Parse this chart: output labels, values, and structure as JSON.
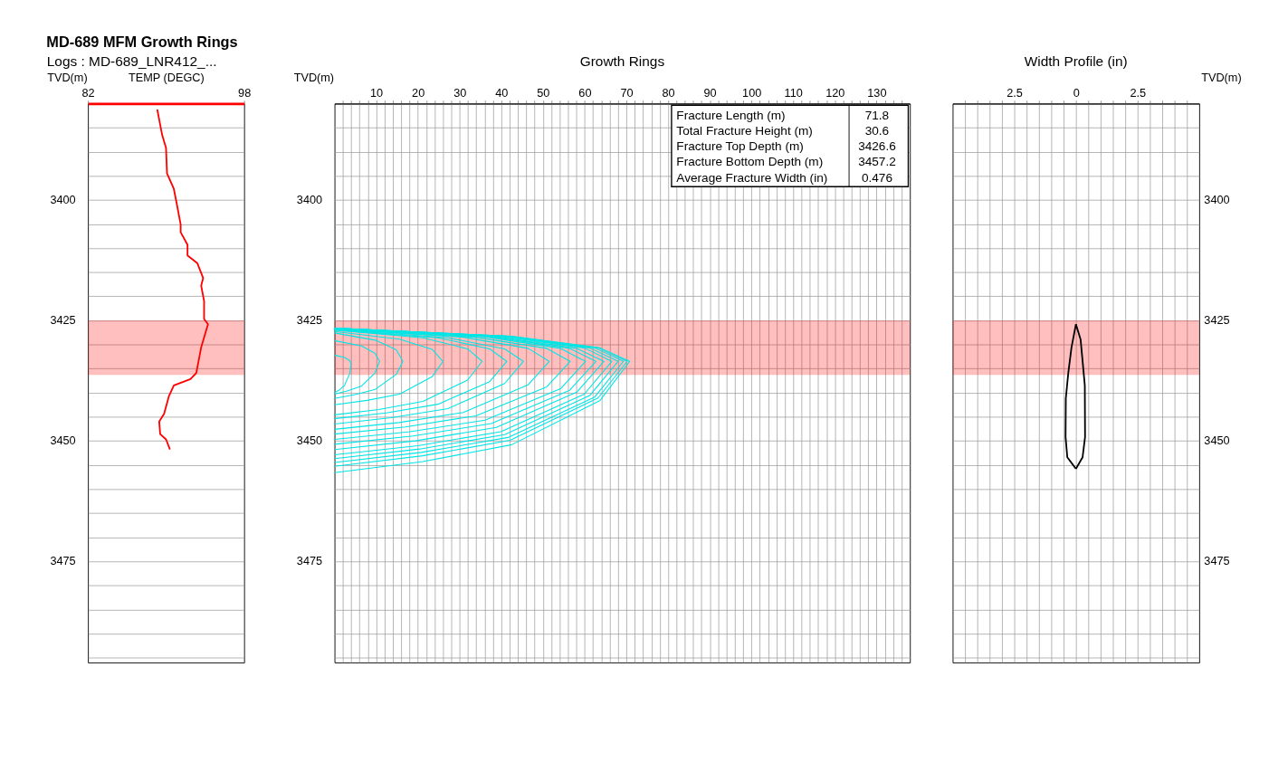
{
  "chart_data": [
    {
      "type": "line",
      "title": "MD-689 MFM Growth Rings",
      "subtitle": "Logs : MD-689_LNR412_...",
      "xlabel": "TEMP (DEGC)",
      "ylabel": "TVD(m)",
      "grid": "y",
      "xlim": [
        82,
        98
      ],
      "xticks": [
        82,
        98
      ],
      "ylim": [
        3496,
        3380
      ],
      "yticks": [
        {
          "value": 3385,
          "label": null
        },
        {
          "value": 3390,
          "label": null
        },
        {
          "value": 3395,
          "label": null
        },
        3400,
        {
          "value": 3405,
          "label": null
        },
        {
          "value": 3410,
          "label": null
        },
        {
          "value": 3415,
          "label": null
        },
        {
          "value": 3420,
          "label": null
        },
        3425,
        {
          "value": 3430,
          "label": null
        },
        {
          "value": 3435,
          "label": null
        },
        {
          "value": 3440,
          "label": null
        },
        {
          "value": 3445,
          "label": null
        },
        3450,
        {
          "value": 3455,
          "label": null
        },
        {
          "value": 3460,
          "label": null
        },
        {
          "value": 3465,
          "label": null
        },
        {
          "value": 3470,
          "label": null
        },
        3475,
        {
          "value": 3480,
          "label": null
        },
        {
          "value": 3485,
          "label": null
        },
        {
          "value": 3490,
          "label": null
        },
        {
          "value": 3495,
          "label": null
        }
      ],
      "bands": [
        {
          "axis": "y",
          "from": 3425,
          "to": 3436.3,
          "color": "#ff0000"
        }
      ],
      "series": [
        {
          "color": "#ff0000",
          "x": [
            89.1,
            89.6,
            90.0,
            90.1,
            90.8,
            91.1,
            91.5,
            91.5,
            92.2,
            92.2,
            93.2,
            93.8,
            93.6,
            93.9,
            93.9,
            94.3,
            93.6,
            93.1,
            92.5,
            90.8,
            90.3,
            89.8,
            89.3,
            89.4,
            90.0,
            90.4
          ],
          "values": [
            3381.2,
            3386.5,
            3389.2,
            3394.5,
            3397.7,
            3400.8,
            3405.1,
            3406.7,
            3409.3,
            3411.5,
            3413.1,
            3416.2,
            3417.8,
            3421.0,
            3424.7,
            3425.8,
            3430.6,
            3435.9,
            3437.2,
            3438.5,
            3440.7,
            3444.4,
            3446.0,
            3448.6,
            3449.7,
            3451.8
          ]
        }
      ]
    },
    {
      "type": "line",
      "title": "Growth Rings",
      "ylabel": "TVD(m)",
      "grid": true,
      "annotations": [
        "Fracture Length (m)",
        "71.8",
        "Total Fracture Height (m)",
        "30.6",
        "Fracture Top Depth (m)",
        "3426.6",
        "Fracture Bottom Depth (m)",
        "3457.2",
        "Average Fracture Width (in)",
        "0.476"
      ],
      "xlim": [
        0,
        138
      ],
      "xticks": [
        {
          "value": 2,
          "label": null
        },
        {
          "value": 4,
          "label": null
        },
        {
          "value": 6,
          "label": null
        },
        {
          "value": 8,
          "label": null
        },
        10,
        {
          "value": 12,
          "label": null
        },
        {
          "value": 14,
          "label": null
        },
        {
          "value": 16,
          "label": null
        },
        {
          "value": 18,
          "label": null
        },
        20,
        {
          "value": 22,
          "label": null
        },
        {
          "value": 24,
          "label": null
        },
        {
          "value": 26,
          "label": null
        },
        {
          "value": 28,
          "label": null
        },
        30,
        {
          "value": 32,
          "label": null
        },
        {
          "value": 34,
          "label": null
        },
        {
          "value": 36,
          "label": null
        },
        {
          "value": 38,
          "label": null
        },
        40,
        {
          "value": 42,
          "label": null
        },
        {
          "value": 44,
          "label": null
        },
        {
          "value": 46,
          "label": null
        },
        {
          "value": 48,
          "label": null
        },
        50,
        {
          "value": 52,
          "label": null
        },
        {
          "value": 54,
          "label": null
        },
        {
          "value": 56,
          "label": null
        },
        {
          "value": 58,
          "label": null
        },
        60,
        {
          "value": 62,
          "label": null
        },
        {
          "value": 64,
          "label": null
        },
        {
          "value": 66,
          "label": null
        },
        {
          "value": 68,
          "label": null
        },
        70,
        {
          "value": 72,
          "label": null
        },
        {
          "value": 74,
          "label": null
        },
        {
          "value": 76,
          "label": null
        },
        {
          "value": 78,
          "label": null
        },
        80,
        {
          "value": 82,
          "label": null
        },
        {
          "value": 84,
          "label": null
        },
        {
          "value": 86,
          "label": null
        },
        {
          "value": 88,
          "label": null
        },
        90,
        {
          "value": 92,
          "label": null
        },
        {
          "value": 94,
          "label": null
        },
        {
          "value": 96,
          "label": null
        },
        {
          "value": 98,
          "label": null
        },
        100,
        {
          "value": 102,
          "label": null
        },
        {
          "value": 104,
          "label": null
        },
        {
          "value": 106,
          "label": null
        },
        {
          "value": 108,
          "label": null
        },
        110,
        {
          "value": 112,
          "label": null
        },
        {
          "value": 114,
          "label": null
        },
        {
          "value": 116,
          "label": null
        },
        {
          "value": 118,
          "label": null
        },
        120,
        {
          "value": 122,
          "label": null
        },
        {
          "value": 124,
          "label": null
        },
        {
          "value": 126,
          "label": null
        },
        {
          "value": 128,
          "label": null
        },
        130,
        {
          "value": 132,
          "label": null
        },
        {
          "value": 134,
          "label": null
        },
        {
          "value": 136,
          "label": null
        }
      ],
      "ylim": [
        3496,
        3380
      ],
      "yticks": [
        {
          "value": 3385,
          "label": null
        },
        {
          "value": 3390,
          "label": null
        },
        {
          "value": 3395,
          "label": null
        },
        3400,
        {
          "value": 3405,
          "label": null
        },
        {
          "value": 3410,
          "label": null
        },
        {
          "value": 3415,
          "label": null
        },
        {
          "value": 3420,
          "label": null
        },
        3425,
        {
          "value": 3430,
          "label": null
        },
        {
          "value": 3435,
          "label": null
        },
        {
          "value": 3440,
          "label": null
        },
        {
          "value": 3445,
          "label": null
        },
        3450,
        {
          "value": 3455,
          "label": null
        },
        {
          "value": 3460,
          "label": null
        },
        {
          "value": 3465,
          "label": null
        },
        {
          "value": 3470,
          "label": null
        },
        3475,
        {
          "value": 3480,
          "label": null
        },
        {
          "value": 3485,
          "label": null
        },
        {
          "value": 3490,
          "label": null
        },
        {
          "value": 3495,
          "label": null
        }
      ],
      "bands": [
        {
          "axis": "y",
          "from": 3425,
          "to": 3436.3,
          "color": "#ff0000"
        }
      ],
      "series": [
        {
          "color": "#00e5e5",
          "x": [
            0,
            2.4,
            3.6,
            4.0,
            3.6,
            2.4,
            1.2,
            0
          ],
          "values": [
            3432.2,
            3432.7,
            3433.3,
            3434.0,
            3436.1,
            3438.5,
            3439.4,
            3440.0
          ]
        },
        {
          "color": "#00e5e5",
          "x": [
            0,
            6.5,
            9.7,
            10.8,
            9.7,
            6.5,
            3.2,
            0
          ],
          "values": [
            3429.2,
            3430.3,
            3431.8,
            3433.5,
            3435.9,
            3438.6,
            3439.6,
            3440.3
          ]
        },
        {
          "color": "#00e5e5",
          "x": [
            0,
            9.8,
            14.8,
            16.4,
            14.8,
            9.8,
            4.9,
            0
          ],
          "values": [
            3427.6,
            3429.1,
            3431.1,
            3433.5,
            3436.2,
            3439.3,
            3440.4,
            3441.2
          ]
        },
        {
          "color": "#00e5e5",
          "x": [
            0,
            15.6,
            23.4,
            26.0,
            23.4,
            15.6,
            7.8,
            0
          ],
          "values": [
            3427.3,
            3428.9,
            3431.0,
            3433.5,
            3436.7,
            3440.3,
            3441.6,
            3442.5
          ]
        },
        {
          "color": "#00e5e5",
          "x": [
            0,
            21.2,
            31.9,
            35.4,
            31.9,
            21.2,
            10.6,
            0
          ],
          "values": [
            3427.0,
            3428.6,
            3430.9,
            3433.5,
            3437.4,
            3441.8,
            3443.5,
            3444.6
          ]
        },
        {
          "color": "#00e5e5",
          "x": [
            0,
            24.8,
            37.2,
            41.3,
            37.2,
            24.8,
            12.4,
            0
          ],
          "values": [
            3427.0,
            3428.6,
            3430.9,
            3433.5,
            3437.7,
            3442.4,
            3444.2,
            3445.4
          ]
        },
        {
          "color": "#00e5e5",
          "x": [
            0,
            27.2,
            40.8,
            45.3,
            40.8,
            27.2,
            13.6,
            0
          ],
          "values": [
            3426.9,
            3428.6,
            3430.9,
            3433.5,
            3438.1,
            3443.3,
            3445.2,
            3446.5
          ]
        },
        {
          "color": "#00e5e5",
          "x": [
            0,
            30.9,
            46.4,
            51.5,
            46.4,
            30.9,
            15.5,
            0
          ],
          "values": [
            3426.8,
            3428.5,
            3430.8,
            3433.5,
            3438.4,
            3444.1,
            3446.2,
            3447.6
          ]
        },
        {
          "color": "#00e5e5",
          "x": [
            0,
            33.9,
            50.9,
            56.5,
            50.9,
            33.9,
            17.0,
            0
          ],
          "values": [
            3426.8,
            3428.5,
            3430.8,
            3433.5,
            3438.8,
            3444.8,
            3447.1,
            3448.6
          ]
        },
        {
          "color": "#00e5e5",
          "x": [
            0,
            36.1,
            54.2,
            60.2,
            54.2,
            36.1,
            18.1,
            0
          ],
          "values": [
            3426.7,
            3428.4,
            3430.8,
            3433.5,
            3439.2,
            3445.7,
            3448.1,
            3449.7
          ]
        },
        {
          "color": "#00e5e5",
          "x": [
            0,
            37.6,
            56.4,
            62.7,
            56.4,
            37.6,
            18.8,
            0
          ],
          "values": [
            3426.7,
            3428.4,
            3430.8,
            3433.5,
            3439.5,
            3446.4,
            3449.0,
            3450.7
          ]
        },
        {
          "color": "#00e5e5",
          "x": [
            0,
            38.8,
            58.1,
            64.6,
            58.1,
            38.8,
            19.4,
            0
          ],
          "values": [
            3426.7,
            3428.4,
            3430.8,
            3433.5,
            3439.9,
            3447.2,
            3450.0,
            3451.8
          ]
        },
        {
          "color": "#00e5e5",
          "x": [
            0,
            39.9,
            59.9,
            66.5,
            59.9,
            39.9,
            20.0,
            0
          ],
          "values": [
            3426.6,
            3428.3,
            3430.7,
            3433.5,
            3440.3,
            3448.1,
            3451.0,
            3452.9
          ]
        },
        {
          "color": "#00e5e5",
          "x": [
            0,
            40.8,
            61.2,
            68.0,
            61.2,
            40.8,
            20.4,
            0
          ],
          "values": [
            3426.6,
            3428.3,
            3430.7,
            3433.5,
            3440.6,
            3448.7,
            3451.7,
            3453.7
          ]
        },
        {
          "color": "#00e5e5",
          "x": [
            0,
            41.6,
            62.4,
            69.3,
            62.4,
            41.6,
            20.8,
            0
          ],
          "values": [
            3426.6,
            3428.3,
            3430.7,
            3433.5,
            3440.9,
            3449.3,
            3452.4,
            3454.5
          ]
        },
        {
          "color": "#00e5e5",
          "x": [
            0,
            42.1,
            63.2,
            70.2,
            63.2,
            42.1,
            21.1,
            0
          ],
          "values": [
            3426.6,
            3428.3,
            3430.7,
            3433.5,
            3441.1,
            3449.9,
            3453.1,
            3455.3
          ]
        },
        {
          "color": "#00e5e5",
          "x": [
            0,
            42.5,
            63.7,
            70.8,
            63.7,
            42.5,
            21.2,
            0
          ],
          "values": [
            3426.6,
            3428.3,
            3430.7,
            3433.5,
            3441.6,
            3450.8,
            3454.3,
            3456.6
          ]
        }
      ]
    },
    {
      "type": "line",
      "title": "Width Profile (in)",
      "ylabel": "TVD(m)",
      "grid": true,
      "xlim": [
        -5,
        5
      ],
      "xticks": [
        {
          "value": -4.5,
          "label": null
        },
        {
          "value": -4,
          "label": null
        },
        {
          "value": -3.5,
          "label": null
        },
        {
          "value": -3,
          "label": null
        },
        {
          "value": -2.5,
          "label": "2.5"
        },
        {
          "value": -2,
          "label": null
        },
        {
          "value": -1.5,
          "label": null
        },
        {
          "value": -1,
          "label": null
        },
        {
          "value": -0.5,
          "label": null
        },
        0,
        {
          "value": 0.5,
          "label": null
        },
        {
          "value": 1,
          "label": null
        },
        {
          "value": 1.5,
          "label": null
        },
        {
          "value": 2,
          "label": null
        },
        2.5,
        {
          "value": 3,
          "label": null
        },
        {
          "value": 3.5,
          "label": null
        },
        {
          "value": 4,
          "label": null
        },
        {
          "value": 4.5,
          "label": null
        }
      ],
      "ylim": [
        3496,
        3380
      ],
      "yticks": [
        {
          "value": 3385,
          "label": null
        },
        {
          "value": 3390,
          "label": null
        },
        {
          "value": 3395,
          "label": null
        },
        3400,
        {
          "value": 3405,
          "label": null
        },
        {
          "value": 3410,
          "label": null
        },
        {
          "value": 3415,
          "label": null
        },
        {
          "value": 3420,
          "label": null
        },
        3425,
        {
          "value": 3430,
          "label": null
        },
        {
          "value": 3435,
          "label": null
        },
        {
          "value": 3440,
          "label": null
        },
        {
          "value": 3445,
          "label": null
        },
        3450,
        {
          "value": 3455,
          "label": null
        },
        {
          "value": 3460,
          "label": null
        },
        {
          "value": 3465,
          "label": null
        },
        {
          "value": 3470,
          "label": null
        },
        3475,
        {
          "value": 3480,
          "label": null
        },
        {
          "value": 3485,
          "label": null
        },
        {
          "value": 3490,
          "label": null
        },
        {
          "value": 3495,
          "label": null
        }
      ],
      "bands": [
        {
          "axis": "y",
          "from": 3425,
          "to": 3436.3,
          "color": "#ff0000"
        }
      ],
      "series": [
        {
          "color": "#000000",
          "x": [
            0,
            0.19,
            0.36,
            0.37,
            0.27,
            0
          ],
          "values": [
            3425.8,
            3429.0,
            3438.5,
            3449.2,
            3453.4,
            3455.8
          ]
        },
        {
          "color": "#000000",
          "x": [
            0,
            -0.18,
            -0.31,
            -0.41,
            -0.42,
            -0.35,
            0
          ],
          "values": [
            3425.8,
            3430.6,
            3435.9,
            3441.2,
            3449.2,
            3453.4,
            3455.8
          ]
        }
      ]
    }
  ]
}
